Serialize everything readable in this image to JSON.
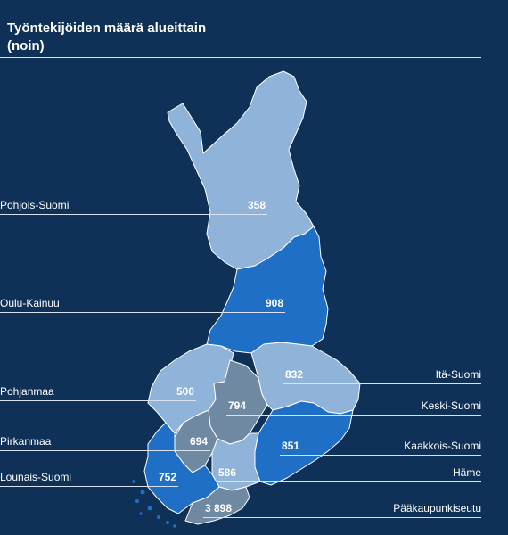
{
  "title_line1": "Työntekijöiden määrä alueittain",
  "title_line2": "(noin)",
  "colors": {
    "background": "#0f3057",
    "light_region": "#8fb3d9",
    "blue_region": "#1f6fc6",
    "gray_region": "#7089a3",
    "rule": "#d9e2ee",
    "text": "#ffffff"
  },
  "regions": [
    {
      "name": "Pohjois-Suomi",
      "value": "358",
      "fill": "light"
    },
    {
      "name": "Oulu-Kainuu",
      "value": "908",
      "fill": "blue"
    },
    {
      "name": "Pohjanmaa",
      "value": "500",
      "fill": "light"
    },
    {
      "name": "Pirkanmaa",
      "value": "694",
      "fill": "gray"
    },
    {
      "name": "Lounais-Suomi",
      "value": "752",
      "fill": "blue"
    },
    {
      "name": "Itä-Suomi",
      "value": "832",
      "fill": "light"
    },
    {
      "name": "Keski-Suomi",
      "value": "794",
      "fill": "gray"
    },
    {
      "name": "Kaakkois-Suomi",
      "value": "851",
      "fill": "blue"
    },
    {
      "name": "Häme",
      "value": "586",
      "fill": "light"
    },
    {
      "name": "Pääkaupunkiseutu",
      "value": "3 898",
      "fill": "gray"
    }
  ]
}
